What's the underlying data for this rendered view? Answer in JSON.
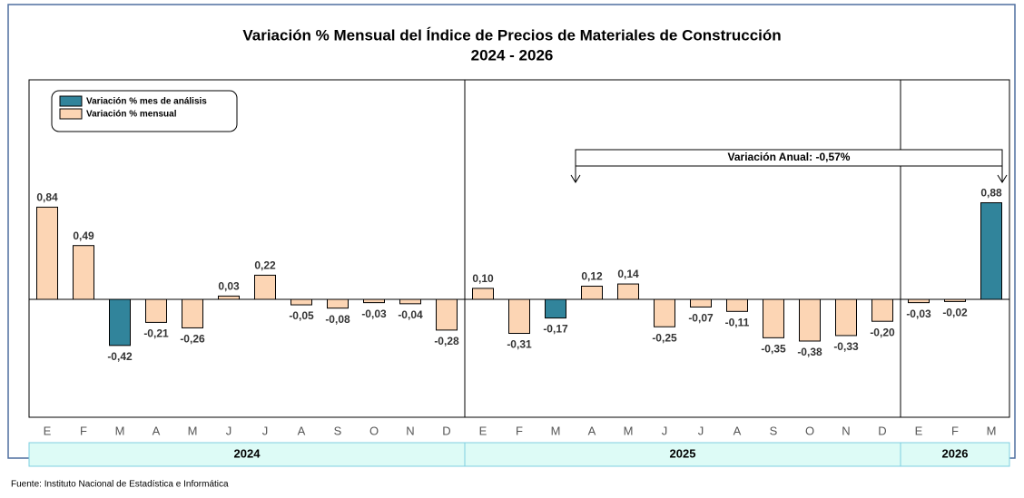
{
  "chart_data": {
    "type": "bar",
    "title": "Variación % Mensual del Índice de Precios de Materiales de Construcción",
    "subtitle": "2024 - 2026",
    "categories": [
      "E",
      "F",
      "M",
      "A",
      "M",
      "J",
      "J",
      "A",
      "S",
      "O",
      "N",
      "D",
      "E",
      "F",
      "M",
      "A",
      "M",
      "J",
      "J",
      "A",
      "S",
      "O",
      "N",
      "D",
      "E",
      "F",
      "M"
    ],
    "values": [
      0.84,
      0.49,
      -0.42,
      -0.21,
      -0.26,
      0.03,
      0.22,
      -0.05,
      -0.08,
      -0.03,
      -0.04,
      -0.28,
      0.1,
      -0.31,
      -0.17,
      0.12,
      0.14,
      -0.25,
      -0.07,
      -0.11,
      -0.35,
      -0.38,
      -0.33,
      -0.2,
      -0.03,
      -0.02,
      0.88
    ],
    "value_labels": [
      "0,84",
      "0,49",
      "-0,42",
      "-0,21",
      "-0,26",
      "0,03",
      "0,22",
      "-0,05",
      "-0,08",
      "-0,03",
      "-0,04",
      "-0,28",
      "0,10",
      "-0,31",
      "-0,17",
      "0,12",
      "0,14",
      "-0,25",
      "-0,07",
      "-0,11",
      "-0,35",
      "-0,38",
      "-0,33",
      "-0,20",
      "-0,03",
      "-0,02",
      "0,88"
    ],
    "colors": [
      "#fcd5b4",
      "#fcd5b4",
      "#31849b",
      "#fcd5b4",
      "#fcd5b4",
      "#fcd5b4",
      "#fcd5b4",
      "#fcd5b4",
      "#fcd5b4",
      "#fcd5b4",
      "#fcd5b4",
      "#fcd5b4",
      "#fcd5b4",
      "#fcd5b4",
      "#31849b",
      "#fcd5b4",
      "#fcd5b4",
      "#fcd5b4",
      "#fcd5b4",
      "#fcd5b4",
      "#fcd5b4",
      "#fcd5b4",
      "#fcd5b4",
      "#fcd5b4",
      "#fcd5b4",
      "#fcd5b4",
      "#31849b"
    ],
    "legend": [
      {
        "name": "Variación % mes de análisis",
        "color": "#31849b"
      },
      {
        "name": "Variación % mensual",
        "color": "#fcd5b4"
      }
    ],
    "year_groups": [
      {
        "label": "2024",
        "span": 12
      },
      {
        "label": "2025",
        "span": 12
      },
      {
        "label": "2026",
        "span": 3
      }
    ],
    "annotation": "Variación Anual: -0,57%",
    "source": "Fuente: Instituto  Nacional de Estadística  e Informática"
  }
}
